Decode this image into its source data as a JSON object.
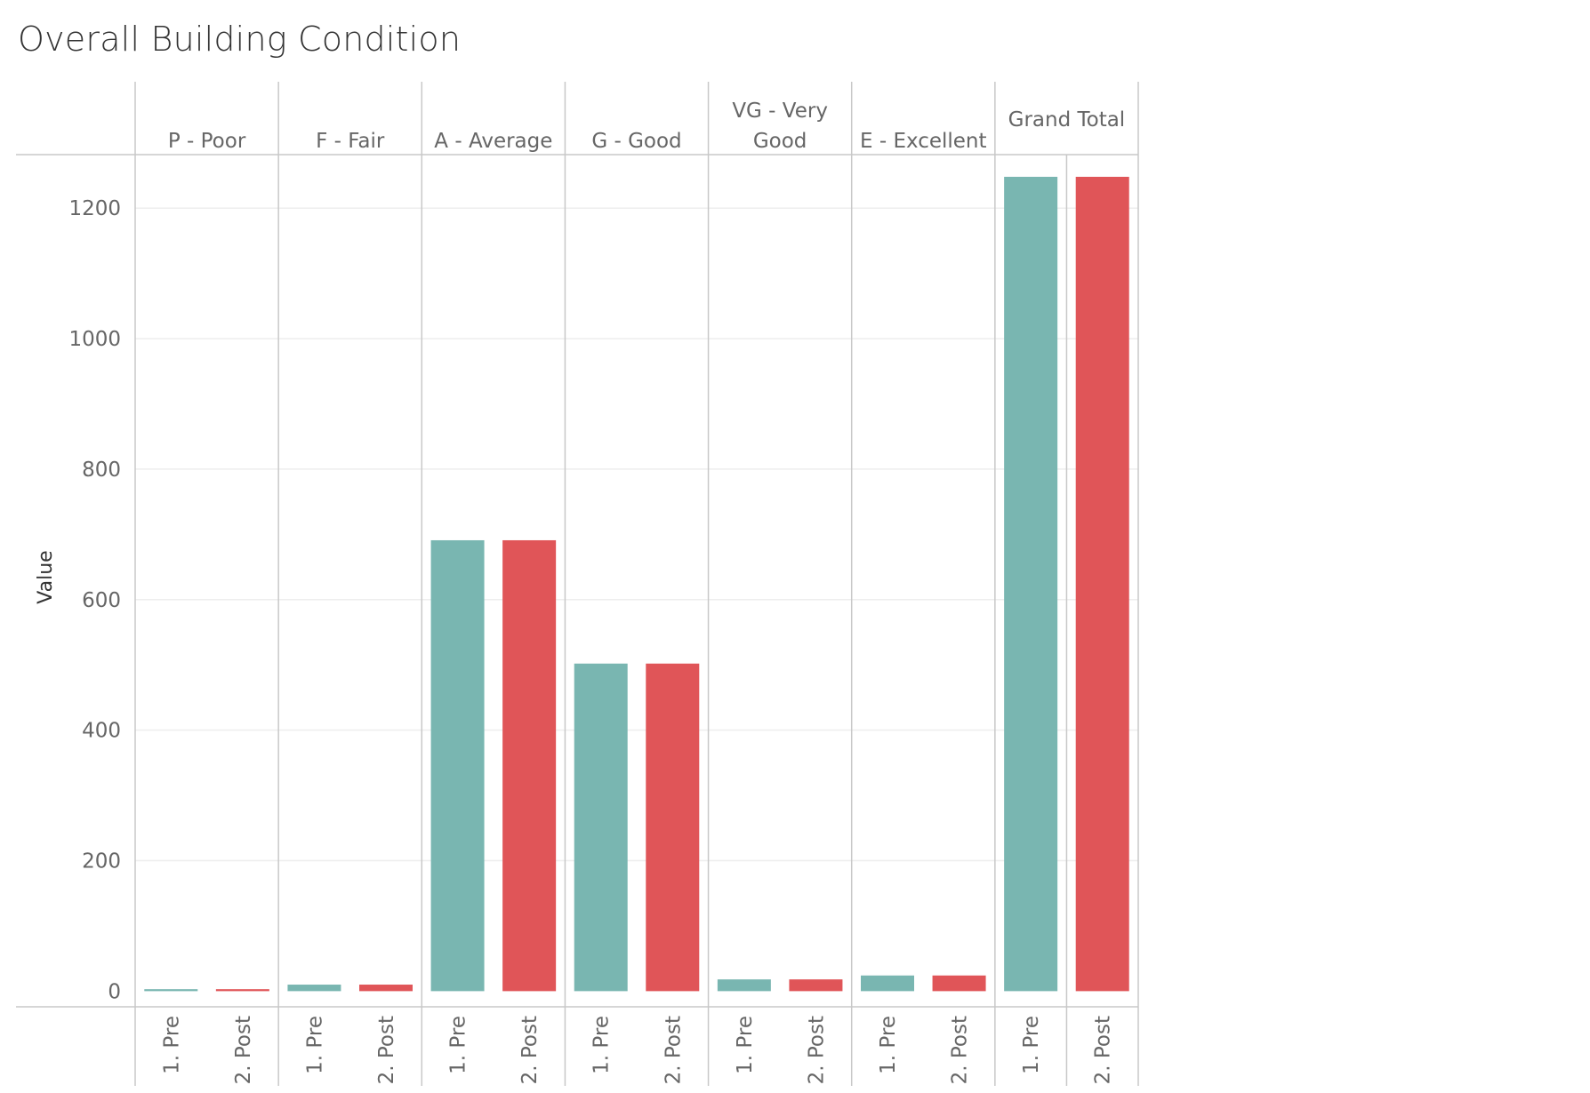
{
  "title": "Overall Building Condition",
  "colors": {
    "pre": "#79b6b1",
    "post": "#e05558",
    "grid": "#eeeeee",
    "frame": "#c8c8c8",
    "text": "#666666"
  },
  "chart_data": {
    "type": "bar",
    "title": "Overall Building Condition",
    "ylabel": "Value",
    "xlabel": "",
    "ylim": [
      -24,
      1282
    ],
    "yticks": [
      0,
      200,
      400,
      600,
      800,
      1000,
      1200
    ],
    "grid": true,
    "groups": [
      {
        "label": [
          "P - Poor"
        ],
        "values": [
          3,
          3
        ]
      },
      {
        "label": [
          "F - Fair"
        ],
        "values": [
          10,
          10
        ]
      },
      {
        "label": [
          "A - Average"
        ],
        "values": [
          691,
          691
        ]
      },
      {
        "label": [
          "G - Good"
        ],
        "values": [
          502,
          502
        ]
      },
      {
        "label": [
          "VG - Very",
          "Good"
        ],
        "values": [
          18,
          18
        ]
      },
      {
        "label": [
          "E - Excellent"
        ],
        "values": [
          24,
          24
        ]
      },
      {
        "label": [
          "Grand Total"
        ],
        "values": [
          1248,
          1248
        ]
      }
    ],
    "sub_categories": [
      "1. Pre",
      "2. Post"
    ]
  }
}
